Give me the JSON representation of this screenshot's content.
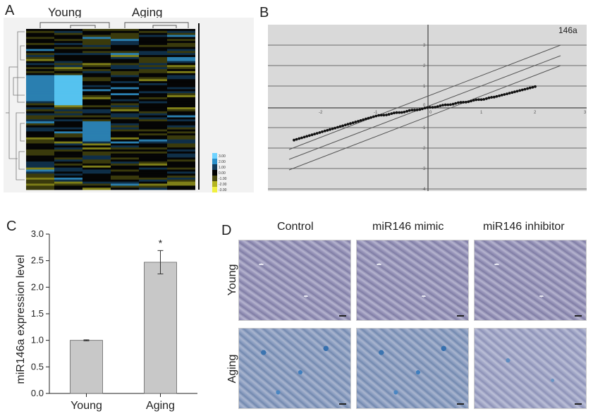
{
  "panels": {
    "a": "A",
    "b": "B",
    "c": "C",
    "d": "D"
  },
  "heatmap": {
    "group_labels": [
      "Young",
      "Aging"
    ],
    "legend_values": [
      "3.00",
      "2.00",
      "1.00",
      "0.00",
      "-1.00",
      "-2.00",
      "-3.00"
    ]
  },
  "qq": {
    "label": "146a",
    "x_ticks": [
      "0",
      "-2",
      "-1",
      "0",
      "1",
      "2",
      "3"
    ],
    "y_ticks": [
      "3",
      "2",
      "1",
      "0",
      "-1",
      "-2",
      "-3",
      "-4"
    ]
  },
  "chart_data": {
    "type": "bar",
    "title": "",
    "categories": [
      "Young",
      "Aging"
    ],
    "values": [
      1.0,
      2.47
    ],
    "errors": [
      0.01,
      0.22
    ],
    "significance": [
      "",
      "*"
    ],
    "xlabel": "",
    "ylabel": "miR146a expression level",
    "ylim": [
      0.0,
      3.0
    ],
    "yticks": [
      "0.0",
      "0.5",
      "1.0",
      "1.5",
      "2.0",
      "2.5",
      "3.0"
    ],
    "bar_color": "#c8c8c8"
  },
  "micrographs": {
    "columns": [
      "Control",
      "miR146 mimic",
      "miR146 inhibitor"
    ],
    "rows": [
      "Young",
      "Aging"
    ]
  }
}
